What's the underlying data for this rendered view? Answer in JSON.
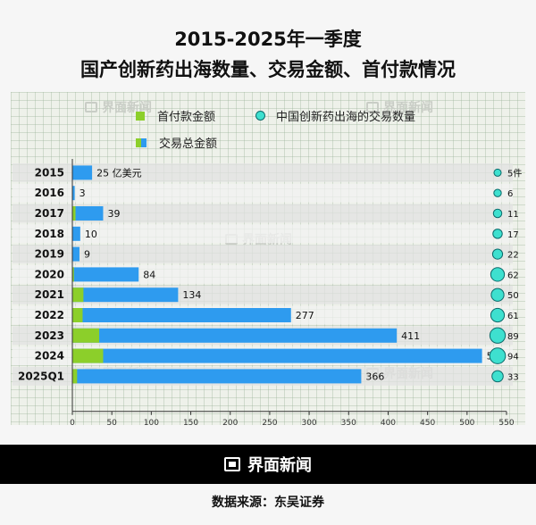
{
  "title_line1": "2015-2025年一季度",
  "title_line2": "国产创新药出海数量、交易金额、首付款情况",
  "legend": {
    "upfront": "首付款金额",
    "count": "中国创新药出海的交易数量",
    "total": "交易总金额"
  },
  "colors": {
    "upfront": "#8ccf2a",
    "total": "#2e9bef",
    "bubble": "#3ee0cf",
    "bubble_stroke": "#0b6a6a"
  },
  "watermark": "界面新闻",
  "footer_logo": "界面新闻",
  "source": "数据来源：东吴证券",
  "chart_data": {
    "type": "bar",
    "orientation": "horizontal",
    "stacked": "overlay",
    "categories": [
      "2015",
      "2016",
      "2017",
      "2018",
      "2019",
      "2020",
      "2021",
      "2022",
      "2023",
      "2024",
      "2025Q1"
    ],
    "series": [
      {
        "name": "交易总金额",
        "values": [
          25,
          3,
          39,
          10,
          9,
          84,
          134,
          277,
          411,
          519,
          366
        ]
      },
      {
        "name": "首付款金额",
        "values": [
          0,
          0,
          4,
          0,
          0,
          2,
          14,
          13,
          34,
          39,
          6
        ]
      },
      {
        "name": "中国创新药出海的交易数量",
        "values": [
          5,
          6,
          11,
          17,
          22,
          62,
          50,
          61,
          89,
          94,
          33
        ]
      }
    ],
    "value_labels": [
      "25 亿美元",
      "3",
      "39",
      "10",
      "9",
      "84",
      "134",
      "277",
      "411",
      "519",
      "366"
    ],
    "count_labels": [
      "5件",
      "6",
      "11",
      "17",
      "22",
      "62",
      "50",
      "61",
      "89",
      "94",
      "33"
    ],
    "xticks": [
      0,
      50,
      100,
      150,
      200,
      250,
      300,
      350,
      400,
      450,
      500,
      550
    ],
    "xlim": [
      0,
      550
    ]
  }
}
